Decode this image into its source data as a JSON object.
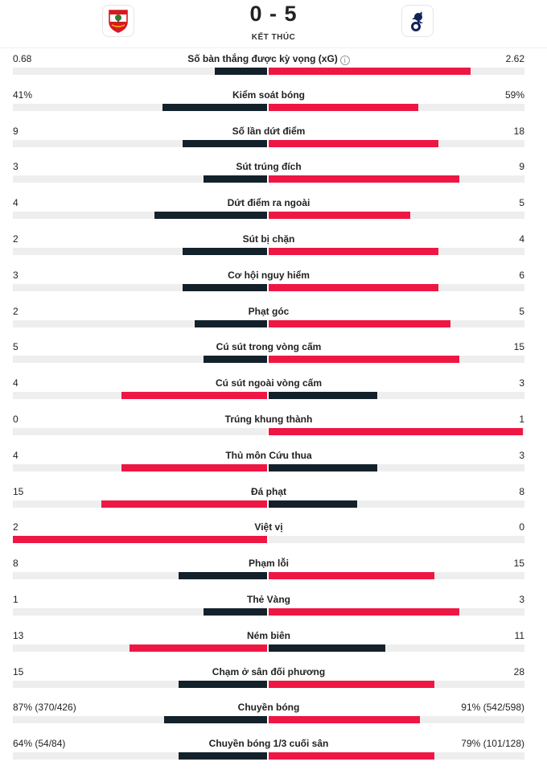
{
  "match": {
    "home_score": "0",
    "separator": "-",
    "away_score": "5",
    "status": "KẾT THÚC",
    "colors": {
      "win": "#ee1744",
      "lose": "#13212b",
      "track": "#eeeeee"
    }
  },
  "stats": [
    {
      "label": "Số bàn thắng được kỳ vọng (xG)",
      "home": "0.68",
      "away": "2.62",
      "hv": 0.68,
      "av": 2.62,
      "info": true
    },
    {
      "label": "Kiểm soát bóng",
      "home": "41%",
      "away": "59%",
      "hv": 41,
      "av": 59
    },
    {
      "label": "Số lần dứt điểm",
      "home": "9",
      "away": "18",
      "hv": 9,
      "av": 18
    },
    {
      "label": "Sút trúng đích",
      "home": "3",
      "away": "9",
      "hv": 3,
      "av": 9
    },
    {
      "label": "Dứt điểm ra ngoài",
      "home": "4",
      "away": "5",
      "hv": 4,
      "av": 5
    },
    {
      "label": "Sút bị chặn",
      "home": "2",
      "away": "4",
      "hv": 2,
      "av": 4
    },
    {
      "label": "Cơ hội nguy hiểm",
      "home": "3",
      "away": "6",
      "hv": 3,
      "av": 6
    },
    {
      "label": "Phạt góc",
      "home": "2",
      "away": "5",
      "hv": 2,
      "av": 5
    },
    {
      "label": "Cú sút trong vòng cấm",
      "home": "5",
      "away": "15",
      "hv": 5,
      "av": 15
    },
    {
      "label": "Cú sút ngoài vòng cấm",
      "home": "4",
      "away": "3",
      "hv": 4,
      "av": 3
    },
    {
      "label": "Trúng khung thành",
      "home": "0",
      "away": "1",
      "hv": 0,
      "av": 1
    },
    {
      "label": "Thủ môn Cứu thua",
      "home": "4",
      "away": "3",
      "hv": 4,
      "av": 3
    },
    {
      "label": "Đá phạt",
      "home": "15",
      "away": "8",
      "hv": 15,
      "av": 8
    },
    {
      "label": "Việt vị",
      "home": "2",
      "away": "0",
      "hv": 2,
      "av": 0
    },
    {
      "label": "Phạm lỗi",
      "home": "8",
      "away": "15",
      "hv": 8,
      "av": 15
    },
    {
      "label": "Thẻ Vàng",
      "home": "1",
      "away": "3",
      "hv": 1,
      "av": 3
    },
    {
      "label": "Ném biên",
      "home": "13",
      "away": "11",
      "hv": 13,
      "av": 11
    },
    {
      "label": "Chạm ở sân đối phương",
      "home": "15",
      "away": "28",
      "hv": 15,
      "av": 28
    },
    {
      "label": "Chuyền bóng",
      "home": "87% (370/426)",
      "away": "91% (542/598)",
      "hv": 370,
      "av": 542
    },
    {
      "label": "Chuyền bóng 1/3 cuối sân",
      "home": "64% (54/84)",
      "away": "79% (101/128)",
      "hv": 54,
      "av": 101
    }
  ]
}
